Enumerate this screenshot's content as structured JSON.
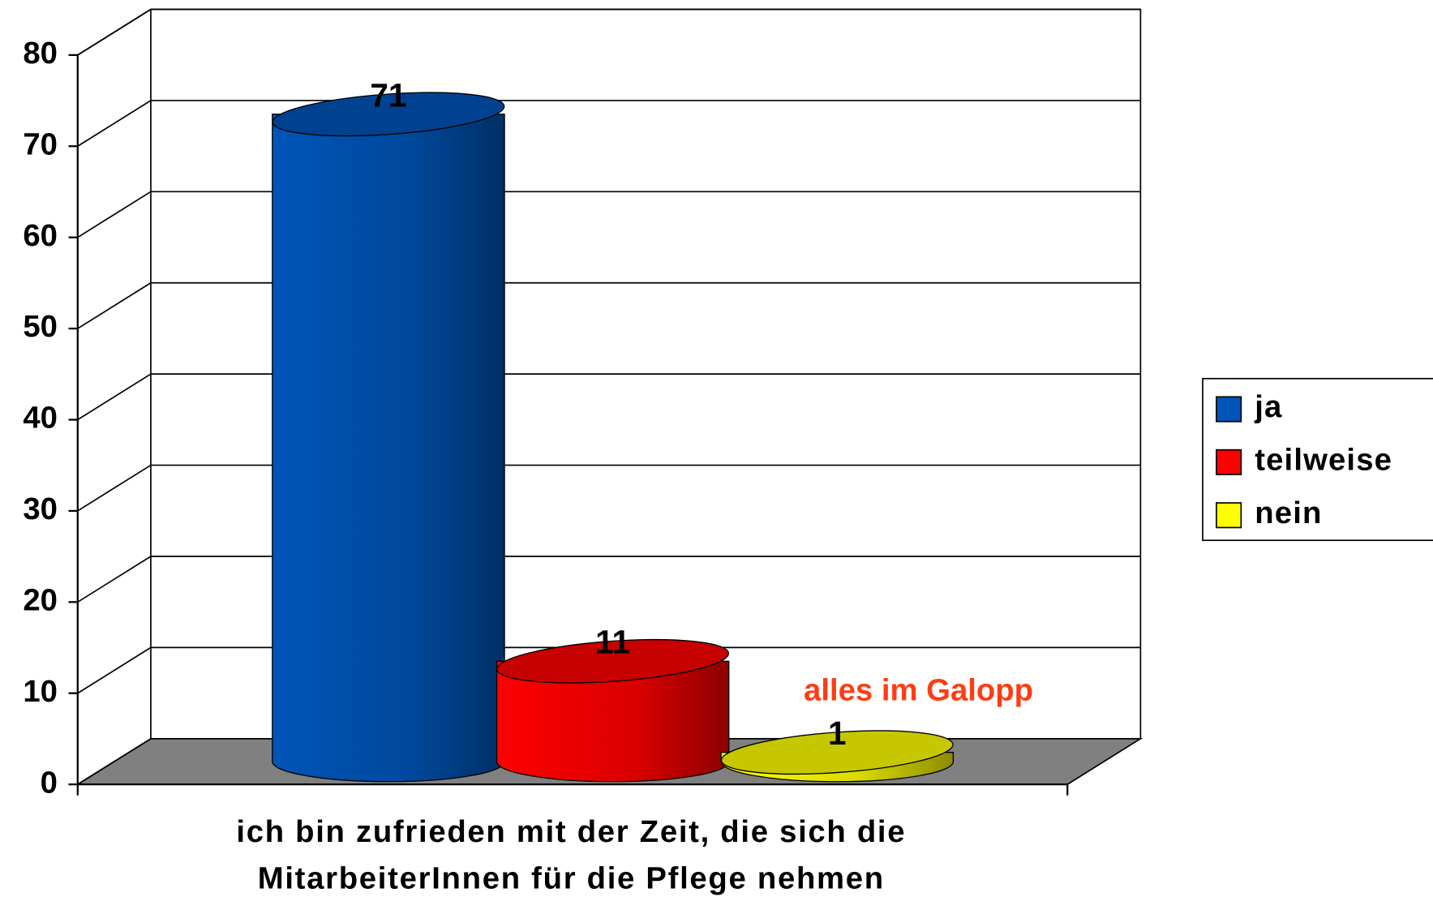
{
  "chart_data": {
    "type": "bar3d-cylinder",
    "categories": [
      "ich bin zufrieden mit der Zeit, die sich die MitarbeiterInnen für die Pflege nehmen"
    ],
    "series": [
      {
        "name": "ja",
        "color": "#0055b8",
        "values": [
          71
        ]
      },
      {
        "name": "teilweise",
        "color": "#ff0000",
        "values": [
          11
        ]
      },
      {
        "name": "nein",
        "color": "#ffff00",
        "values": [
          1
        ]
      }
    ],
    "ylim": [
      0,
      80
    ],
    "yticks": [
      0,
      10,
      20,
      30,
      40,
      50,
      60,
      70,
      80
    ],
    "grid": true,
    "annotation": "alles im Galopp",
    "legend": "right"
  }
}
